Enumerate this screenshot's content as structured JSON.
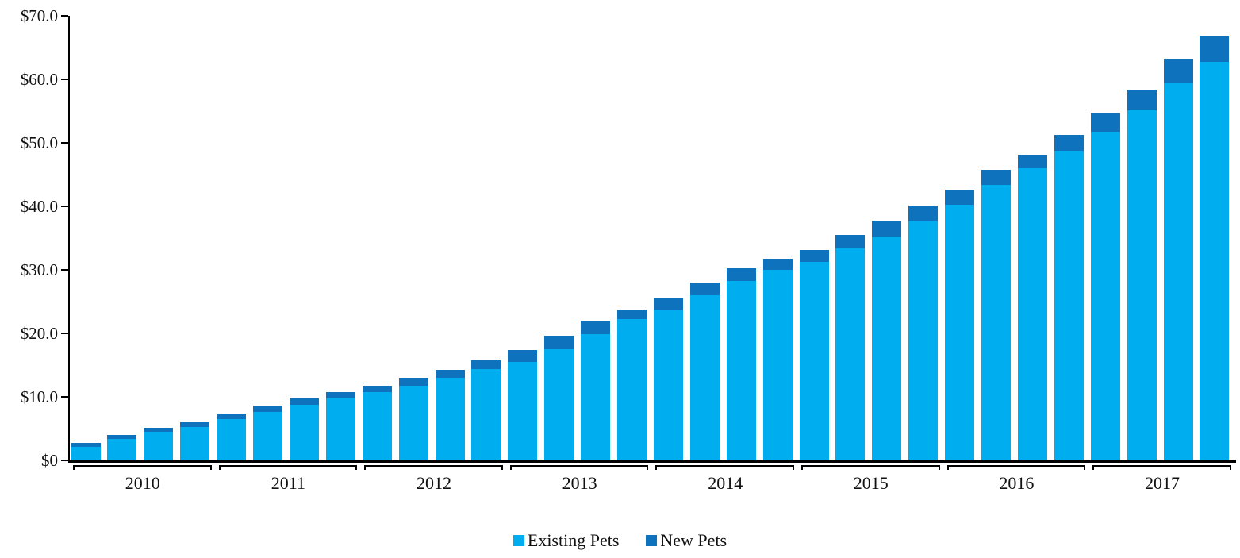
{
  "chart_data": {
    "type": "bar",
    "stacked": true,
    "title": "",
    "xlabel": "",
    "ylabel": "",
    "ylim": [
      0,
      70
    ],
    "grid": false,
    "legend_position": "bottom-center",
    "y_ticks": [
      {
        "value": 70,
        "label": "$70.0"
      },
      {
        "value": 60,
        "label": "$60.0"
      },
      {
        "value": 50,
        "label": "$50.0"
      },
      {
        "value": 40,
        "label": "$40.0"
      },
      {
        "value": 30,
        "label": "$30.0"
      },
      {
        "value": 20,
        "label": "$20.0"
      },
      {
        "value": 10,
        "label": "$10.0"
      },
      {
        "value": 0,
        "label": "$0"
      }
    ],
    "year_groups": [
      "2010",
      "2011",
      "2012",
      "2013",
      "2014",
      "2015",
      "2016",
      "2017"
    ],
    "quarters_per_group": 4,
    "series": [
      {
        "name": "Existing Pets",
        "color": "#00AEEF",
        "values": [
          2.1,
          3.4,
          4.5,
          5.3,
          6.5,
          7.6,
          8.7,
          9.8,
          10.8,
          11.7,
          13.0,
          14.4,
          15.5,
          17.5,
          19.9,
          22.3,
          23.8,
          26.0,
          28.3,
          30.0,
          31.3,
          33.4,
          35.1,
          37.7,
          40.3,
          43.4,
          46.0,
          48.8,
          51.8,
          55.1,
          59.5,
          62.7
        ]
      },
      {
        "name": "New Pets",
        "color": "#0E72BD",
        "values": [
          0.6,
          0.6,
          0.6,
          0.7,
          0.9,
          1.0,
          1.0,
          0.9,
          1.0,
          1.3,
          1.3,
          1.4,
          1.9,
          2.1,
          2.1,
          1.4,
          1.7,
          2.0,
          1.9,
          1.8,
          1.8,
          2.1,
          2.7,
          2.4,
          2.3,
          2.3,
          2.1,
          2.5,
          3.0,
          3.3,
          3.8,
          4.2
        ]
      }
    ],
    "axis_color": "#000000"
  },
  "legend": {
    "existing_label": "Existing Pets",
    "new_label": "New Pets"
  }
}
